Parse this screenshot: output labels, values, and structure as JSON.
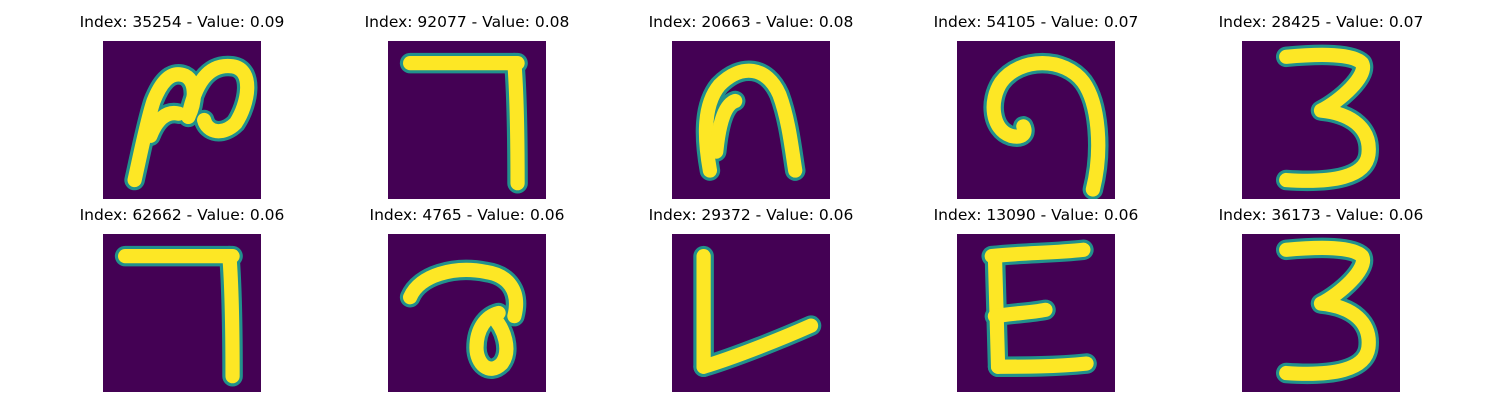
{
  "grid": [
    {
      "title": "Index: 35254 - Value: 0.09",
      "glyph": "mixed-stroke"
    },
    {
      "title": "Index: 92077 - Value: 0.08",
      "glyph": "seven"
    },
    {
      "title": "Index: 20663 - Value: 0.08",
      "glyph": "arch"
    },
    {
      "title": "Index: 54105 - Value: 0.07",
      "glyph": "curl"
    },
    {
      "title": "Index: 28425 - Value: 0.07",
      "glyph": "three"
    },
    {
      "title": "Index: 62662 - Value: 0.06",
      "glyph": "seven"
    },
    {
      "title": "Index: 4765 - Value: 0.06",
      "glyph": "hook"
    },
    {
      "title": "Index: 29372 - Value: 0.06",
      "glyph": "L"
    },
    {
      "title": "Index: 13090 - Value: 0.06",
      "glyph": "E"
    },
    {
      "title": "Index: 36173 - Value: 0.06",
      "glyph": "three"
    }
  ],
  "colors": {
    "background": "#440154",
    "stroke": "#fde725",
    "edge": "#21918c"
  }
}
